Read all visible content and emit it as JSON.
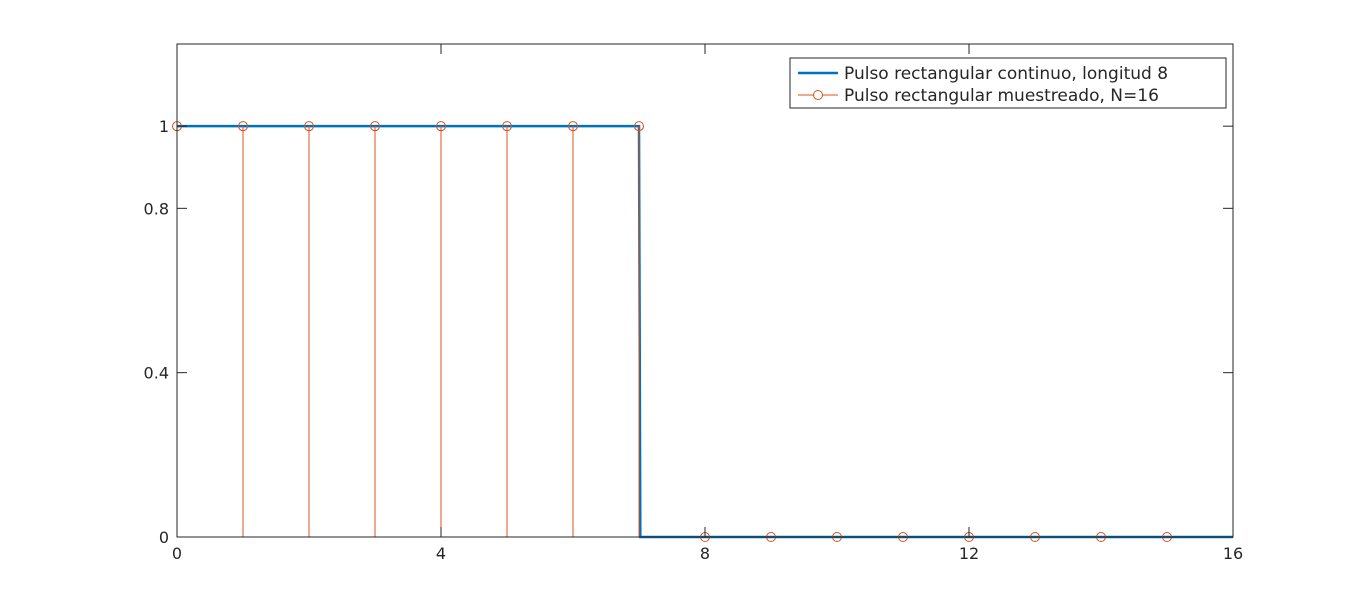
{
  "chart_data": {
    "type": "line",
    "title": "",
    "xlabel": "",
    "ylabel": "",
    "xlim": [
      0,
      16
    ],
    "ylim": [
      0,
      1.2
    ],
    "xticks": [
      0,
      4,
      8,
      12,
      16
    ],
    "xtick_labels": [
      "0",
      "4",
      "8",
      "12",
      "16"
    ],
    "yticks": [
      0,
      0.4,
      0.8,
      1
    ],
    "ytick_labels": [
      "0",
      "0.4",
      "0.8",
      "1"
    ],
    "grid": false,
    "legend_position": "top-right",
    "series": [
      {
        "name": "Pulso rectangular continuo, longitud 8",
        "style": "line",
        "color": "#0072bd",
        "x": [
          0,
          7,
          7.02,
          16
        ],
        "y": [
          1,
          1,
          0,
          0
        ]
      },
      {
        "name": "Pulso rectangular muestreado, N=16",
        "style": "stem",
        "color": "#d95319",
        "marker": "circle-open",
        "x": [
          0,
          1,
          2,
          3,
          4,
          5,
          6,
          7,
          8,
          9,
          10,
          11,
          12,
          13,
          14,
          15
        ],
        "y": [
          1,
          1,
          1,
          1,
          1,
          1,
          1,
          1,
          0,
          0,
          0,
          0,
          0,
          0,
          0,
          0
        ]
      }
    ]
  }
}
